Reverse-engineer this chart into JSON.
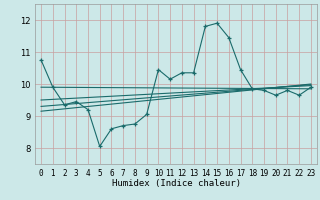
{
  "xlabel": "Humidex (Indice chaleur)",
  "ylabel": "",
  "xlim": [
    -0.5,
    23.5
  ],
  "ylim": [
    7.5,
    12.5
  ],
  "yticks": [
    8,
    9,
    10,
    11,
    12
  ],
  "xticks": [
    0,
    1,
    2,
    3,
    4,
    5,
    6,
    7,
    8,
    9,
    10,
    11,
    12,
    13,
    14,
    15,
    16,
    17,
    18,
    19,
    20,
    21,
    22,
    23
  ],
  "bg_color": "#cce8e8",
  "grid_color": "#c8a0a0",
  "line_color": "#1a6b6b",
  "line1_y": [
    10.75,
    9.9,
    9.35,
    9.45,
    9.2,
    8.05,
    8.6,
    8.7,
    8.75,
    9.05,
    10.45,
    10.15,
    10.35,
    10.35,
    11.8,
    11.9,
    11.45,
    10.45,
    9.85,
    9.8,
    9.65,
    9.8,
    9.65,
    9.9
  ],
  "flat_lines": [
    {
      "x0": 0,
      "y0": 9.9,
      "x1": 23,
      "y1": 9.85
    },
    {
      "x0": 0,
      "y0": 9.5,
      "x1": 23,
      "y1": 9.95
    },
    {
      "x0": 0,
      "y0": 9.3,
      "x1": 23,
      "y1": 9.98
    },
    {
      "x0": 0,
      "y0": 9.15,
      "x1": 23,
      "y1": 10.0
    }
  ]
}
